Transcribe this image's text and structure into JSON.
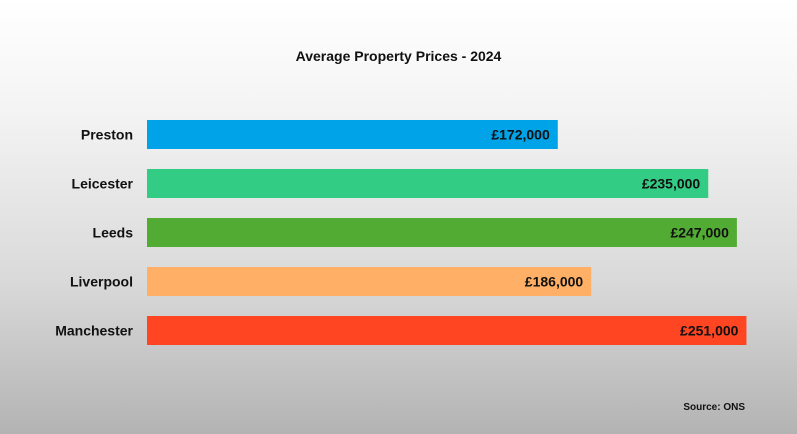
{
  "chart_data": {
    "type": "bar",
    "orientation": "horizontal",
    "title": "Average Property Prices - 2024",
    "categories": [
      "Preston",
      "Leicester",
      "Leeds",
      "Liverpool",
      "Manchester"
    ],
    "values": [
      172000,
      235000,
      247000,
      186000,
      251000
    ],
    "value_labels": [
      "£172,000",
      "£235,000",
      "£247,000",
      "£186,000",
      "£251,000"
    ],
    "colors": [
      "#00a2e8",
      "#33cc85",
      "#52ab33",
      "#ffb066",
      "#ff4521"
    ],
    "xlim": [
      0,
      255000
    ],
    "grid": false,
    "legend": "none",
    "xlabel": "",
    "ylabel": ""
  },
  "footer": {
    "source": "Source: ONS"
  }
}
